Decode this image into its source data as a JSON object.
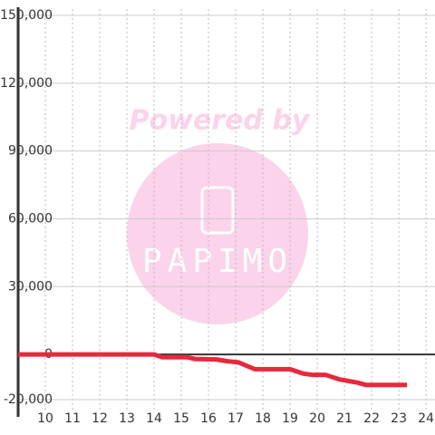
{
  "chart_data": {
    "type": "line",
    "x": [
      9,
      14,
      14.3,
      15.2,
      15.5,
      16.3,
      16.7,
      17.1,
      17.7,
      19,
      19.5,
      19.8,
      20.3,
      20.8,
      21.5,
      21.8,
      23.3
    ],
    "values": [
      0,
      0,
      -1200,
      -1200,
      -2000,
      -2200,
      -3000,
      -3500,
      -6500,
      -6500,
      -8500,
      -9000,
      -9000,
      -11000,
      -12500,
      -13500,
      -13500
    ],
    "color": "#e8283c",
    "xlim": [
      9,
      24.33
    ],
    "xticks": [
      10,
      11,
      12,
      13,
      14,
      15,
      16,
      17,
      18,
      19,
      20,
      21,
      22,
      23,
      24
    ],
    "ylim": [
      -20000,
      150000
    ],
    "yticks": [
      {
        "value": -20000,
        "label": "-20,000"
      },
      0,
      {
        "value": 30000,
        "label": "30,000"
      },
      {
        "value": 60000,
        "label": "60,000"
      },
      {
        "value": 90000,
        "label": "90,000"
      },
      {
        "value": 120000,
        "label": "120,000"
      },
      {
        "value": 150000,
        "label": "150,000"
      }
    ],
    "grid": true
  },
  "watermark": {
    "caption": "Powered by",
    "logo": "PAPIMO"
  }
}
